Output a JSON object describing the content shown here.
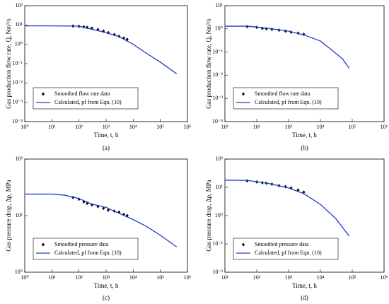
{
  "chart_data": [
    {
      "type": "line",
      "log_x": true,
      "log_y": true,
      "caption": "(a)",
      "xlabel": "Time, t, h",
      "ylabel": "Gas production flow rate, Q, Nm³/s",
      "legend": "lower left",
      "xlim": [
        1,
        1000000
      ],
      "ylim": [
        0.0001,
        100
      ],
      "xticks": [
        {
          "value": 1,
          "label": "10⁰"
        },
        {
          "value": 10,
          "label": "10¹"
        },
        {
          "value": 100,
          "label": "10²"
        },
        {
          "value": 1000,
          "label": "10³"
        },
        {
          "value": 10000,
          "label": "10⁴"
        },
        {
          "value": 100000,
          "label": "10⁵"
        },
        {
          "value": 1000000,
          "label": "10⁶"
        }
      ],
      "yticks": [
        {
          "value": 0.0001,
          "label": "10⁻⁴"
        },
        {
          "value": 0.001,
          "label": "10⁻³"
        },
        {
          "value": 0.01,
          "label": "10⁻²"
        },
        {
          "value": 0.1,
          "label": "10⁻¹"
        },
        {
          "value": 1,
          "label": "10⁰"
        },
        {
          "value": 10,
          "label": "10¹"
        },
        {
          "value": 100,
          "label": "10²"
        }
      ],
      "series": [
        {
          "name": "Smoothed flow rate data",
          "color": "#000000",
          "style": "points",
          "x": [
            60,
            100,
            150,
            200,
            300,
            500,
            800,
            1200,
            2000,
            3000,
            4500,
            6000
          ],
          "values": [
            8.8,
            8.5,
            8,
            7.5,
            6.8,
            5.8,
            4.8,
            4,
            3.2,
            2.6,
            2.1,
            1.8
          ]
        },
        {
          "name": "Calculated, pf from Eqn. (10)",
          "color": "#1f3fbf",
          "style": "line",
          "x": [
            1,
            10,
            100,
            300,
            1000,
            3000,
            10000,
            30000,
            100000,
            400000
          ],
          "values": [
            9,
            9,
            8.7,
            6,
            4,
            2.5,
            1,
            0.35,
            0.12,
            0.03
          ]
        }
      ]
    },
    {
      "type": "line",
      "log_x": true,
      "log_y": true,
      "caption": "(b)",
      "xlabel": "Time, t, h",
      "ylabel": "Gas production flow rate, Q, Nm³/s",
      "legend": "lower left",
      "xlim": [
        10,
        1000000
      ],
      "ylim": [
        0.0001,
        10
      ],
      "xticks": [
        {
          "value": 10,
          "label": "10¹"
        },
        {
          "value": 100,
          "label": "10²"
        },
        {
          "value": 1000,
          "label": "10³"
        },
        {
          "value": 10000,
          "label": "10⁴"
        },
        {
          "value": 100000,
          "label": "10⁵"
        },
        {
          "value": 1000000,
          "label": "10⁶"
        }
      ],
      "yticks": [
        {
          "value": 0.0001,
          "label": "10⁻⁴"
        },
        {
          "value": 0.001,
          "label": "10⁻³"
        },
        {
          "value": 0.01,
          "label": "10⁻²"
        },
        {
          "value": 0.1,
          "label": "10⁻¹"
        },
        {
          "value": 1,
          "label": "10⁰"
        },
        {
          "value": 10,
          "label": "10¹"
        }
      ],
      "series": [
        {
          "name": "Smoothed flow rate data",
          "color": "#000000",
          "style": "points",
          "x": [
            50,
            100,
            150,
            200,
            300,
            500,
            800,
            1200,
            2000,
            3000
          ],
          "values": [
            1.25,
            1.15,
            1.05,
            1,
            0.95,
            0.88,
            0.8,
            0.72,
            0.65,
            0.58
          ]
        },
        {
          "name": "Calculated, pf from Eqn. (10)",
          "color": "#1f3fbf",
          "style": "line",
          "x": [
            10,
            50,
            100,
            300,
            1000,
            3000,
            10000,
            30000,
            50000,
            80000
          ],
          "values": [
            1.3,
            1.3,
            1.2,
            1,
            0.8,
            0.55,
            0.3,
            0.09,
            0.05,
            0.02
          ]
        }
      ]
    },
    {
      "type": "line",
      "log_x": true,
      "log_y": true,
      "caption": "(c)",
      "xlabel": "Time, t, h",
      "ylabel": "Gas pressure drop, Δp, MPa",
      "legend": "lower left",
      "xlim": [
        1,
        1000000
      ],
      "ylim": [
        1,
        100
      ],
      "xticks": [
        {
          "value": 1,
          "label": "10⁰"
        },
        {
          "value": 10,
          "label": "10¹"
        },
        {
          "value": 100,
          "label": "10²"
        },
        {
          "value": 1000,
          "label": "10³"
        },
        {
          "value": 10000,
          "label": "10⁴"
        },
        {
          "value": 100000,
          "label": "10⁵"
        },
        {
          "value": 1000000,
          "label": "10⁶"
        }
      ],
      "yticks": [
        {
          "value": 1,
          "label": "10⁰"
        },
        {
          "value": 10,
          "label": "10¹"
        },
        {
          "value": 100,
          "label": "10²"
        }
      ],
      "series": [
        {
          "name": "Smoothed pressure data",
          "color": "#000000",
          "style": "points",
          "x": [
            60,
            100,
            150,
            200,
            300,
            500,
            800,
            1200,
            2000,
            3000,
            4500,
            6000
          ],
          "values": [
            21,
            19.5,
            17.5,
            16.5,
            15.5,
            14.5,
            13.5,
            12.5,
            12,
            11.5,
            10.5,
            10
          ]
        },
        {
          "name": "Calculated, pf from Eqn. (10)",
          "color": "#1f3fbf",
          "style": "line",
          "x": [
            1,
            10,
            30,
            100,
            300,
            1000,
            3000,
            10000,
            30000,
            100000,
            400000
          ],
          "values": [
            24,
            24,
            23,
            20,
            16,
            14,
            11,
            8.5,
            6.5,
            4.5,
            2.8
          ]
        }
      ]
    },
    {
      "type": "line",
      "log_x": true,
      "log_y": true,
      "caption": "(d)",
      "xlabel": "Time, t, h",
      "ylabel": "Gas pressure drop, Δp, MPa",
      "legend": "lower left",
      "xlim": [
        10,
        1000000
      ],
      "ylim": [
        0.01,
        100
      ],
      "xticks": [
        {
          "value": 10,
          "label": "10¹"
        },
        {
          "value": 100,
          "label": "10²"
        },
        {
          "value": 1000,
          "label": "10³"
        },
        {
          "value": 10000,
          "label": "10⁴"
        },
        {
          "value": 100000,
          "label": "10⁵"
        },
        {
          "value": 1000000,
          "label": "10⁶"
        }
      ],
      "yticks": [
        {
          "value": 0.01,
          "label": "10⁻²"
        },
        {
          "value": 0.1,
          "label": "10⁻¹"
        },
        {
          "value": 1,
          "label": "10⁰"
        },
        {
          "value": 10,
          "label": "10¹"
        },
        {
          "value": 100,
          "label": "10²"
        }
      ],
      "series": [
        {
          "name": "Smoothed pressure data",
          "color": "#000000",
          "style": "points",
          "x": [
            50,
            100,
            150,
            200,
            300,
            500,
            800,
            1200,
            2000,
            3000
          ],
          "values": [
            17,
            15.5,
            14.5,
            14,
            13,
            11.5,
            10.5,
            9.5,
            8,
            6.8
          ]
        },
        {
          "name": "Calculated, pf from Eqn. (10)",
          "color": "#1f3fbf",
          "style": "line",
          "x": [
            10,
            50,
            100,
            300,
            1000,
            3000,
            10000,
            30000,
            80000
          ],
          "values": [
            18,
            17.5,
            16,
            13,
            9.5,
            6,
            2.5,
            0.8,
            0.19
          ]
        }
      ]
    }
  ]
}
